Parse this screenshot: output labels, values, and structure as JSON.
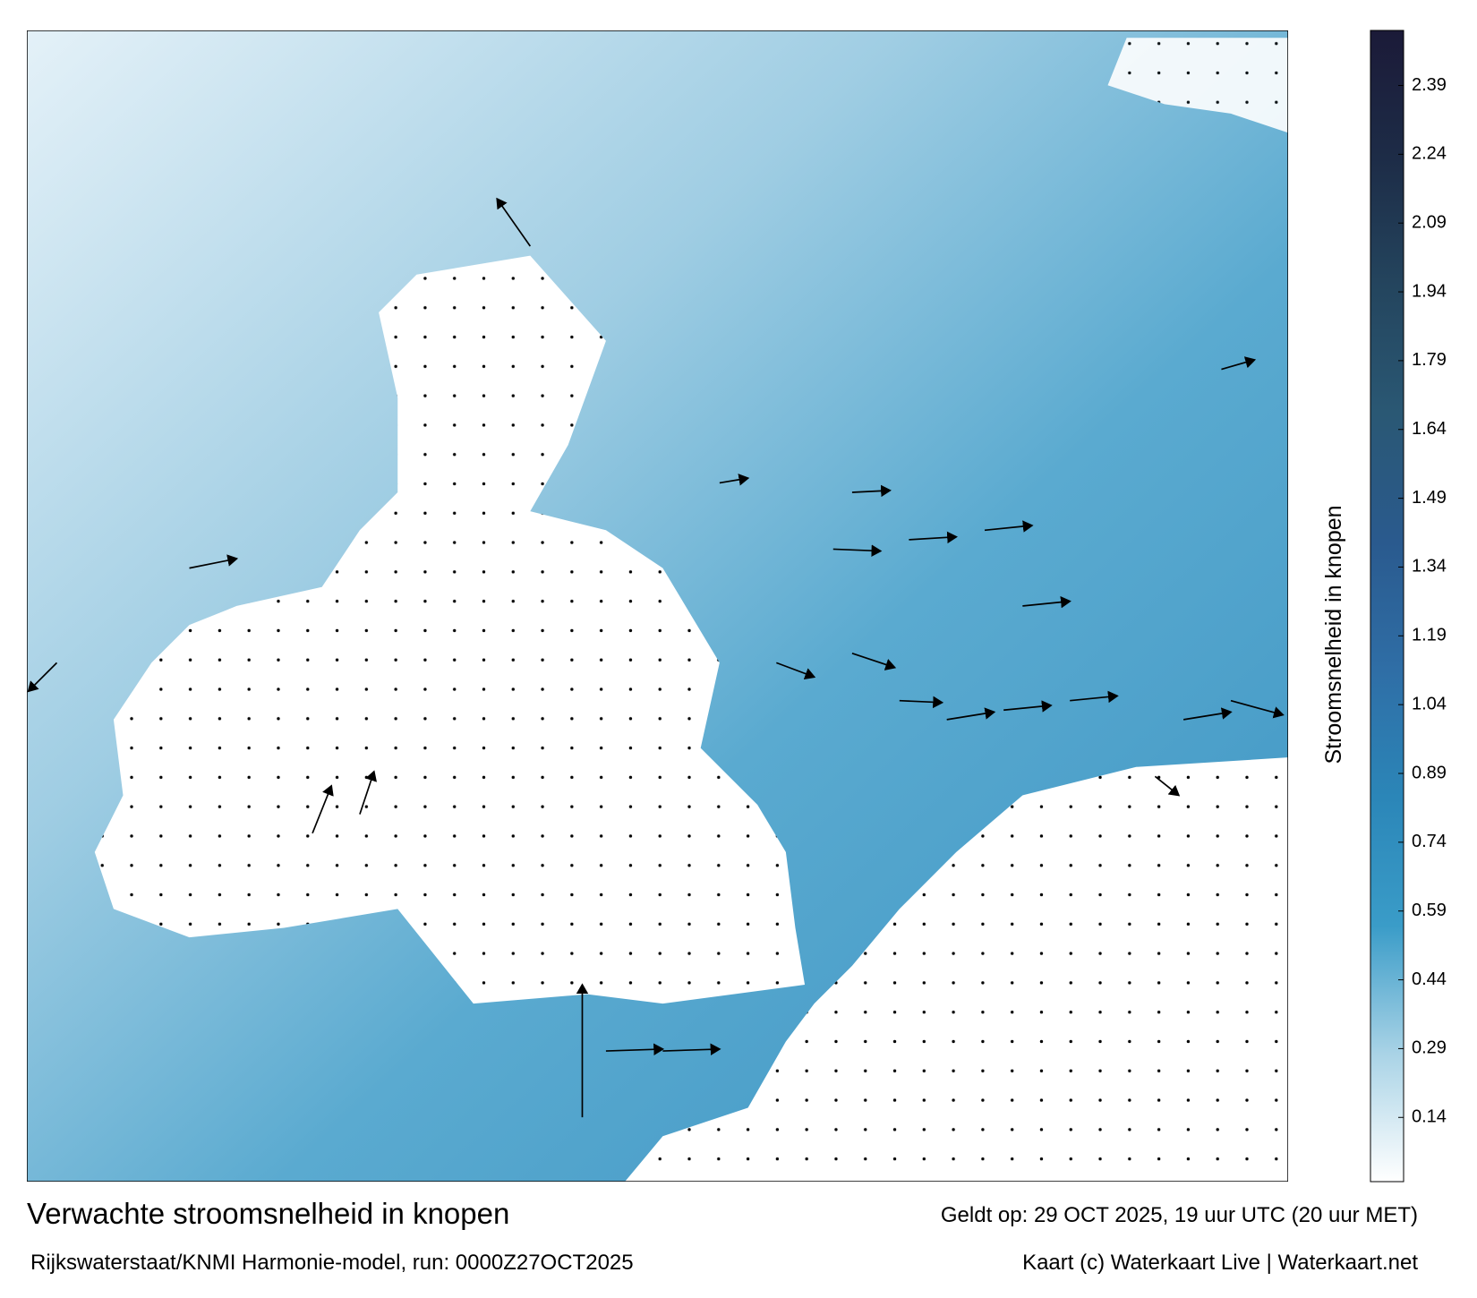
{
  "title": "Verwachte stroomsnelheid in knopen",
  "subtitle": "Rijkswaterstaat/KNMI Harmonie-model, run: 0000Z27OCT2025",
  "valid_time": "Geldt op: 29 OCT 2025, 19 uur UTC (20 uur MET)",
  "credit": "Kaart (c) Waterkaart Live | Waterkaart.net",
  "colorbar": {
    "label": "Stroomsnelheid in knopen",
    "lim": [
      0,
      2.51
    ],
    "ticks": [
      0.14,
      0.29,
      0.44,
      0.59,
      0.74,
      0.89,
      1.04,
      1.19,
      1.34,
      1.49,
      1.64,
      1.79,
      1.94,
      2.09,
      2.24,
      2.39
    ],
    "colors": [
      "#ffffff",
      "#a9d3e6",
      "#3a9cc8",
      "#2b86b8",
      "#2f6ea6",
      "#2a5a8e",
      "#2a5874",
      "#24455e",
      "#1d2c47",
      "#1b1a38"
    ]
  }
}
